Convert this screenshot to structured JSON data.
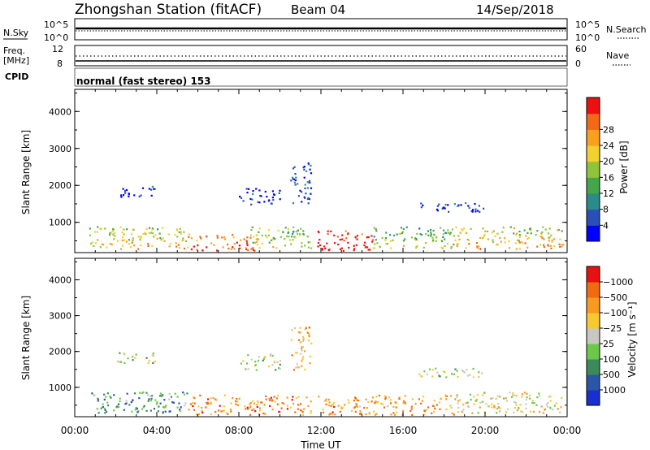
{
  "header": {
    "station": "Zhongshan Station (fitACF)",
    "beam": "Beam 04",
    "date": "14/Sep/2018"
  },
  "top_panel": {
    "left_label": "N.Sky",
    "right_label": "N.Search",
    "left_ticks": [
      "10^5",
      "10^0"
    ],
    "right_ticks": [
      "10^5",
      "10^0"
    ]
  },
  "freq_panel": {
    "left_label_1": "Freq.",
    "left_label_2": "[MHz]",
    "left_ticks": [
      "12",
      "8"
    ],
    "right_label": "Nave",
    "right_ticks": [
      "60",
      "0"
    ],
    "cpid_label": "CPID",
    "mode_text": "normal (fast stereo) 153"
  },
  "chart_data": [
    {
      "type": "heatmap",
      "panel": "power",
      "ylabel": "Slant Range [km]",
      "yticks": [
        1000,
        2000,
        3000,
        4000
      ],
      "ylim": [
        180,
        4600
      ],
      "xlim_hours": [
        0,
        24
      ],
      "colorbar_label": "Power [dB]",
      "colorbar_ticks": [
        "4",
        "8",
        "12",
        "16",
        "20",
        "24",
        "28"
      ],
      "colorbar_colors": [
        "#0000ff",
        "#2a4fb8",
        "#2b8a8a",
        "#44a54a",
        "#8fc43a",
        "#f1d12d",
        "#f8a020",
        "#f26a18",
        "#ee1010"
      ],
      "regions": [
        {
          "t": [
            0.7,
            5.5
          ],
          "r": [
            300,
            900
          ],
          "level": 0.45
        },
        {
          "t": [
            5.5,
            9.0
          ],
          "r": [
            250,
            700
          ],
          "level": 0.7
        },
        {
          "t": [
            8.5,
            11.5
          ],
          "r": [
            300,
            900
          ],
          "level": 0.4
        },
        {
          "t": [
            11.8,
            14.5
          ],
          "r": [
            250,
            800
          ],
          "level": 0.85
        },
        {
          "t": [
            14.5,
            18.5
          ],
          "r": [
            300,
            900
          ],
          "level": 0.35
        },
        {
          "t": [
            18.5,
            23.8
          ],
          "r": [
            300,
            900
          ],
          "level": 0.5
        },
        {
          "t": [
            2.0,
            4.0
          ],
          "r": [
            1700,
            2000
          ],
          "level": 0.08
        },
        {
          "t": [
            8.0,
            10.0
          ],
          "r": [
            1500,
            1950
          ],
          "level": 0.08
        },
        {
          "t": [
            10.5,
            11.5
          ],
          "r": [
            1500,
            2700
          ],
          "level": 0.12
        },
        {
          "t": [
            16.5,
            20.0
          ],
          "r": [
            1300,
            1550
          ],
          "level": 0.1
        }
      ]
    },
    {
      "type": "heatmap",
      "panel": "velocity",
      "ylabel": "Slant Range [km]",
      "yticks": [
        1000,
        2000,
        3000,
        4000
      ],
      "ylim": [
        180,
        4600
      ],
      "xlim_hours": [
        0,
        24
      ],
      "xticks": [
        "00:00",
        "04:00",
        "08:00",
        "12:00",
        "16:00",
        "20:00",
        "00:00"
      ],
      "xlabel": "Time UT",
      "colorbar_label": "Velocity [m s⁻¹]",
      "colorbar_ticks": [
        "1000",
        "500",
        "100",
        "25",
        "−25",
        "−100",
        "−500",
        "−1000"
      ],
      "colorbar_colors": [
        "#1a2fd0",
        "#2a56a8",
        "#3c8a5a",
        "#6cc84a",
        "#c8c8c0",
        "#f8c830",
        "#f89a20",
        "#f06a10",
        "#e81010"
      ],
      "regions": [
        {
          "t": [
            0.7,
            5.5
          ],
          "r": [
            300,
            900
          ],
          "level": 0.3
        },
        {
          "t": [
            5.5,
            11.5
          ],
          "r": [
            250,
            800
          ],
          "level": 0.75
        },
        {
          "t": [
            11.8,
            18.5
          ],
          "r": [
            250,
            800
          ],
          "level": 0.72
        },
        {
          "t": [
            18.5,
            23.8
          ],
          "r": [
            300,
            900
          ],
          "level": 0.55
        },
        {
          "t": [
            2.0,
            4.0
          ],
          "r": [
            1700,
            2000
          ],
          "level": 0.48
        },
        {
          "t": [
            8.0,
            10.0
          ],
          "r": [
            1500,
            1950
          ],
          "level": 0.48
        },
        {
          "t": [
            10.5,
            11.5
          ],
          "r": [
            1500,
            2700
          ],
          "level": 0.65
        },
        {
          "t": [
            16.5,
            20.0
          ],
          "r": [
            1300,
            1550
          ],
          "level": 0.48
        }
      ]
    }
  ]
}
